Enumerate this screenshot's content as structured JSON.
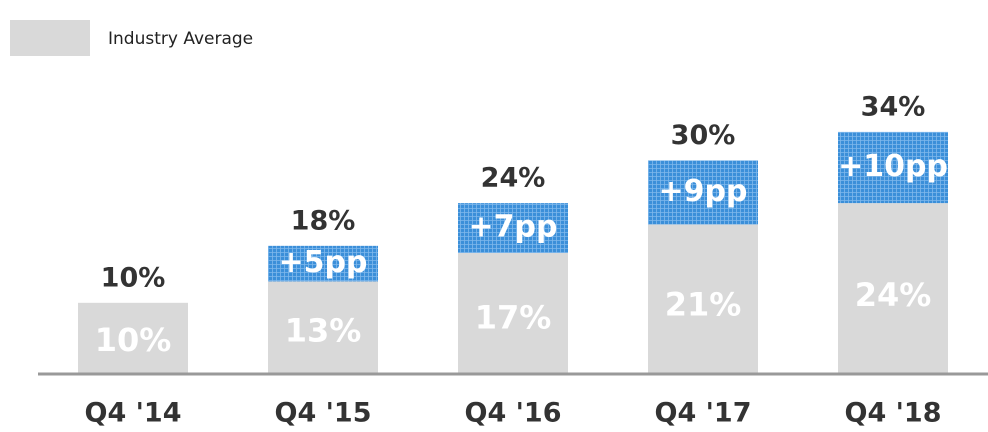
{
  "chart_data": {
    "type": "stacked_bar",
    "categories": [
      "Q4 '14",
      "Q4 '15",
      "Q4 '16",
      "Q4 '17",
      "Q4 '18"
    ],
    "series": [
      {
        "name": "Industry Average",
        "color": "#d9d9d9",
        "values": [
          10,
          13,
          17,
          21,
          24
        ],
        "value_labels": [
          "10%",
          "13%",
          "17%",
          "21%",
          "24%"
        ]
      },
      {
        "color": "#3b8fd9",
        "values": [
          null,
          5,
          7,
          9,
          10
        ],
        "value_labels": [
          null,
          "+5pp",
          "+7pp",
          "+9pp",
          "+10pp"
        ]
      }
    ],
    "totals": {
      "values": [
        10,
        18,
        24,
        30,
        34
      ],
      "value_labels": [
        "10%",
        "18%",
        "24%",
        "30%",
        "34%"
      ]
    },
    "ylim": [
      0,
      50
    ],
    "legend": "top-left"
  }
}
